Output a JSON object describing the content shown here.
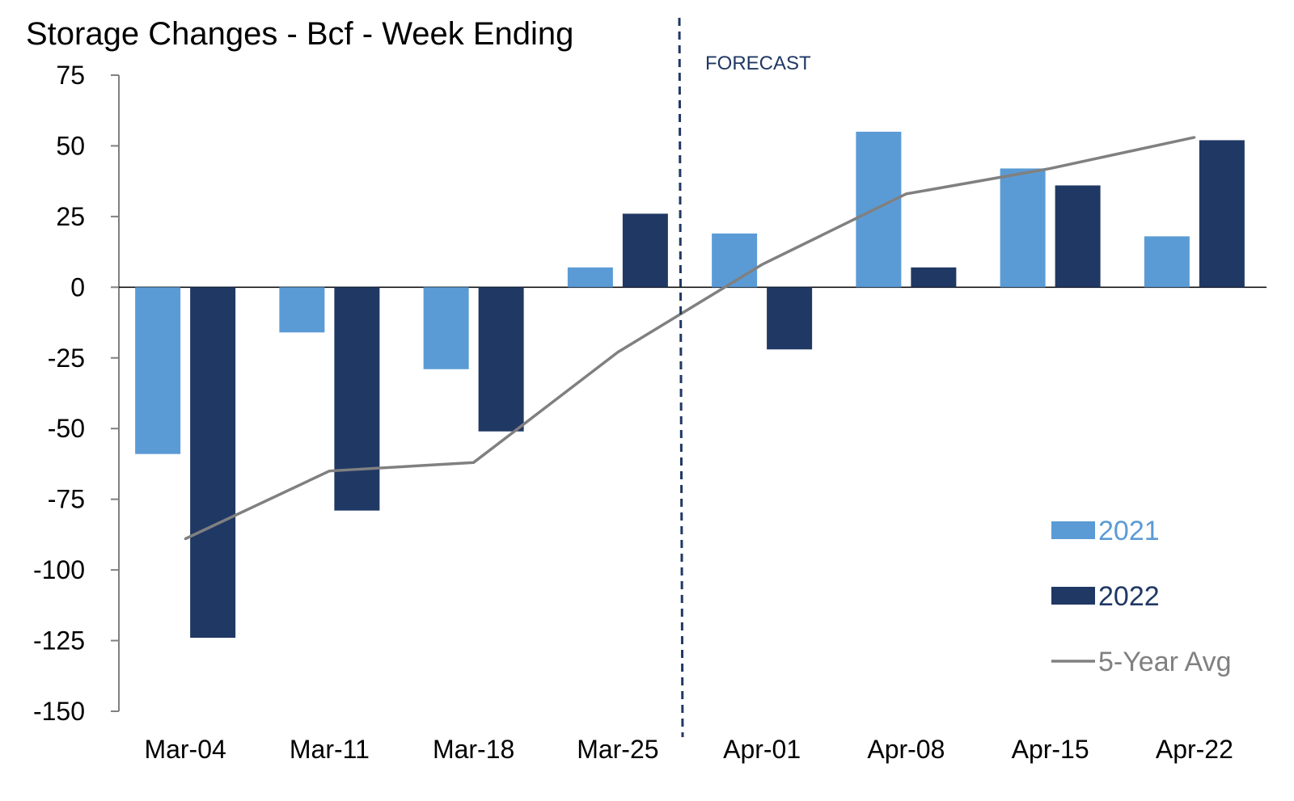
{
  "chart_data": {
    "type": "bar",
    "title": "Storage Changes - Bcf - Week Ending",
    "categories": [
      "Mar-04",
      "Mar-11",
      "Mar-18",
      "Mar-25",
      "Apr-01",
      "Apr-08",
      "Apr-15",
      "Apr-22"
    ],
    "series": [
      {
        "name": "2021",
        "kind": "bar",
        "color": "#5b9bd5",
        "values": [
          -59,
          -16,
          -29,
          7,
          19,
          55,
          42,
          18
        ]
      },
      {
        "name": "2022",
        "kind": "bar",
        "color": "#203864",
        "values": [
          -124,
          -79,
          -51,
          26,
          -22,
          7,
          36,
          52
        ]
      },
      {
        "name": "5-Year Avg",
        "kind": "line",
        "color": "#808080",
        "values": [
          -89,
          -65,
          -62,
          -23,
          8,
          33,
          42,
          53
        ]
      }
    ],
    "ylim": [
      -150,
      75
    ],
    "yticks": [
      75,
      50,
      25,
      0,
      -25,
      -50,
      -75,
      -100,
      -125,
      -150
    ],
    "ytick_labels": [
      "75",
      "50",
      "25",
      "0",
      "-25",
      "-50",
      "-75",
      "-100",
      "-125",
      "-150"
    ],
    "xlabel": "",
    "ylabel": "",
    "grid": false,
    "legend_position": "bottom-right",
    "annotation": {
      "text": "FORECAST",
      "color": "#203864",
      "divider": "between Mar-25 and Apr-01",
      "divider_style": "dashed"
    },
    "colors": {
      "axis": "#808080",
      "zero_line": "#000000",
      "divider": "#203864"
    }
  }
}
